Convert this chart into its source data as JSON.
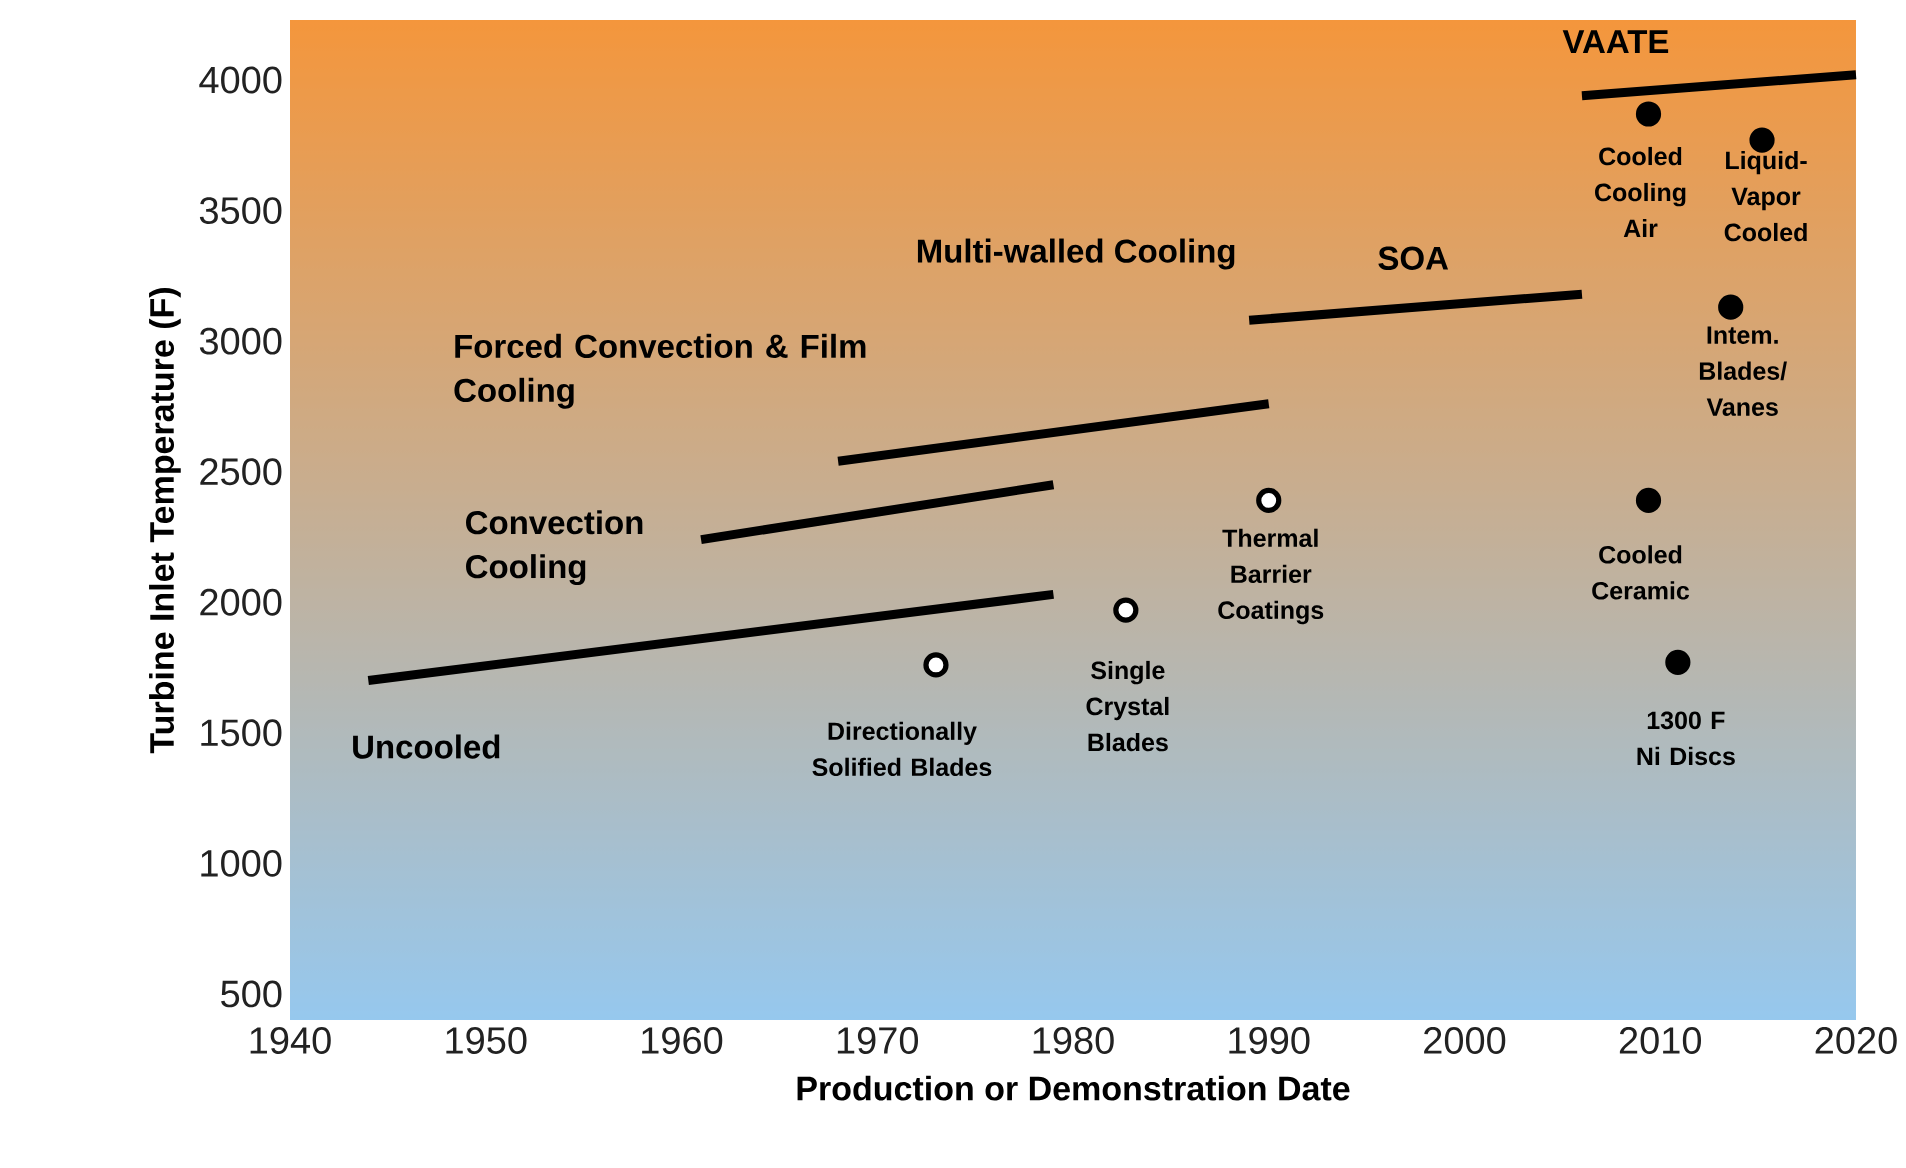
{
  "chart_data": {
    "type": "line",
    "xlabel": "Production or Demonstration Date",
    "ylabel": "Turbine Inlet Temperature (F)",
    "xlim": [
      1940,
      2020
    ],
    "ylim": [
      400,
      4230
    ],
    "xticks": [
      1940,
      1950,
      1960,
      1970,
      1980,
      1990,
      2000,
      2010,
      2020
    ],
    "yticks": [
      500,
      1000,
      1500,
      2000,
      2500,
      3000,
      3500,
      4000
    ],
    "series": [
      {
        "name": "Uncooled",
        "color": "#000000",
        "x": [
          1944,
          1979
        ],
        "values": [
          1700,
          2030
        ]
      },
      {
        "name": "Convection Cooling",
        "color": "#000000",
        "x": [
          1961,
          1979
        ],
        "values": [
          2240,
          2450
        ]
      },
      {
        "name": "Forced Convection & Film Cooling",
        "color": "#000000",
        "x": [
          1968,
          1990
        ],
        "values": [
          2540,
          2760
        ]
      },
      {
        "name": "SOA",
        "color": "#000000",
        "x": [
          1989,
          2006
        ],
        "values": [
          3080,
          3180
        ]
      },
      {
        "name": "VAATE",
        "color": "#000000",
        "x": [
          2006,
          2020
        ],
        "values": [
          3940,
          4020
        ]
      },
      {
        "name": "Directionally Solified Blades",
        "type": "scatter",
        "marker": "circle",
        "color": "#ffffff",
        "x": [
          1973
        ],
        "values": [
          1760
        ]
      },
      {
        "name": "Single Crystal Blades",
        "type": "scatter",
        "marker": "circle",
        "color": "#ffffff",
        "x": [
          1982.7
        ],
        "values": [
          1970
        ]
      },
      {
        "name": "Thermal Barrier Coatings",
        "type": "scatter",
        "marker": "circle",
        "color": "#ffffff",
        "x": [
          1990
        ],
        "values": [
          2390
        ]
      },
      {
        "name": "Cooled Cooling Air",
        "type": "scatter",
        "marker": "circle",
        "color": "#000000",
        "x": [
          2009.4
        ],
        "values": [
          3870
        ]
      },
      {
        "name": "Liquid-Vapor Cooled",
        "type": "scatter",
        "marker": "circle",
        "color": "#000000",
        "x": [
          2015.2
        ],
        "values": [
          3770
        ]
      },
      {
        "name": "Intem. Blades/ Vanes",
        "type": "scatter",
        "marker": "circle",
        "color": "#000000",
        "x": [
          2013.6
        ],
        "values": [
          3130
        ]
      },
      {
        "name": "Cooled Ceramic",
        "type": "scatter",
        "marker": "circle",
        "color": "#000000",
        "x": [
          2009.4
        ],
        "values": [
          2390
        ]
      },
      {
        "name": "1300 F Ni Discs",
        "type": "scatter",
        "marker": "circle",
        "color": "#000000",
        "x": [
          2010.9
        ],
        "values": [
          1770
        ]
      }
    ],
    "annotations": [
      "Multi-walled Cooling"
    ]
  }
}
